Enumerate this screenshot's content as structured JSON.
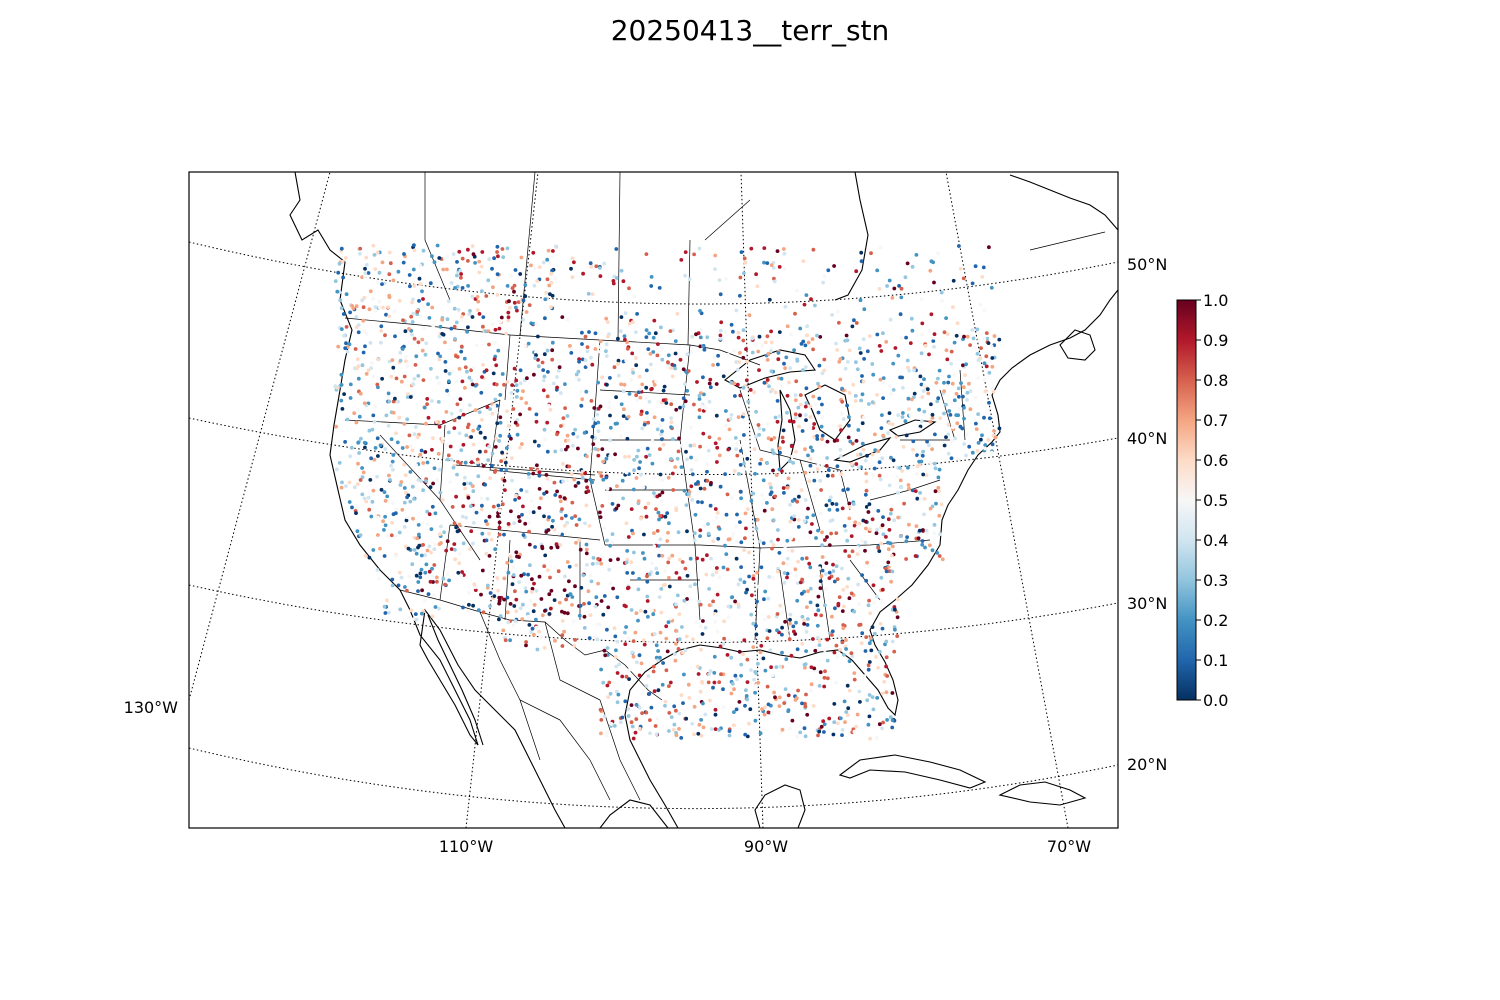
{
  "title": "20250413__terr_stn",
  "map": {
    "projection": "lambert-conformal",
    "lon_labels": [
      "130°W",
      "110°W",
      "90°W",
      "70°W"
    ],
    "lat_labels": [
      "20°N",
      "30°N",
      "40°N",
      "50°N"
    ],
    "gridline_style": "dotted"
  },
  "colorbar": {
    "colormap": "RdBu_r",
    "min": 0.0,
    "max": 1.0,
    "tick_labels": [
      "0.0",
      "0.1",
      "0.2",
      "0.3",
      "0.4",
      "0.5",
      "0.6",
      "0.7",
      "0.8",
      "0.9",
      "1.0"
    ],
    "colors": {
      "low": "#053061",
      "mid": "#f7f7f7",
      "high": "#67001f"
    }
  }
}
